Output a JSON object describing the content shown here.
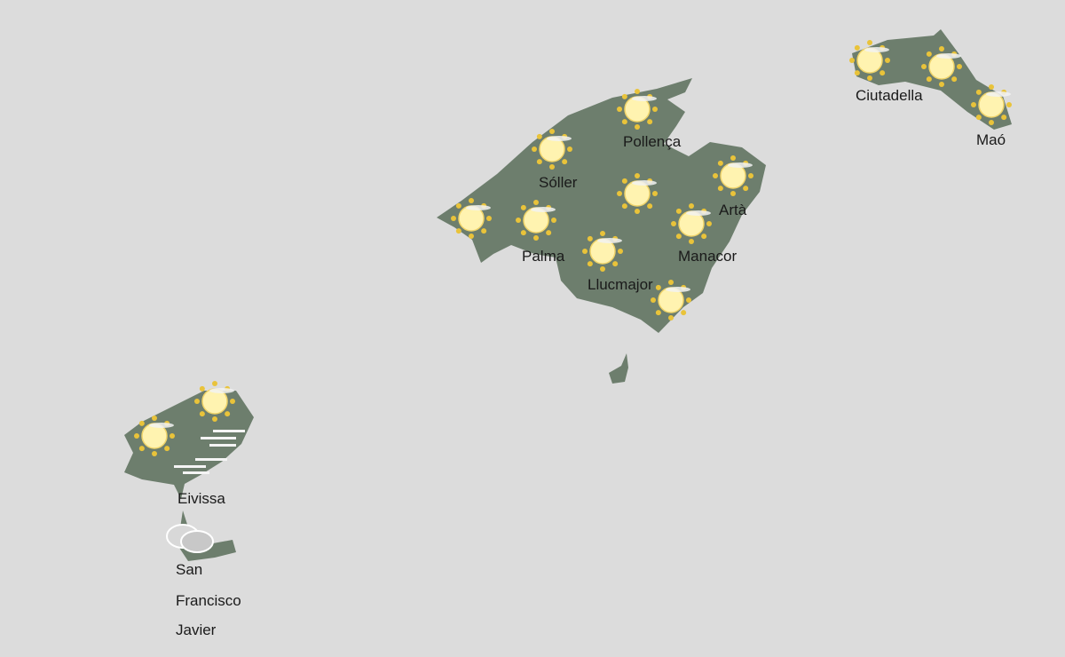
{
  "colors": {
    "background": "#dcdcdc",
    "land": "#6d7e6d",
    "sun": "#fff3b0",
    "sun_rays": "#e9c33a"
  },
  "locations": [
    {
      "name": "Pollença",
      "icon": "sun-icon"
    },
    {
      "name": "Sóller",
      "icon": "sun-icon"
    },
    {
      "name": "Artà",
      "icon": "sun-icon"
    },
    {
      "name": "Palma",
      "icon": "sun-icon"
    },
    {
      "name": "Manacor",
      "icon": "sun-icon"
    },
    {
      "name": "Llucmajor",
      "icon": "sun-icon"
    },
    {
      "name": "Ciutadella",
      "icon": "sun-icon"
    },
    {
      "name": "Maó",
      "icon": "sun-icon"
    },
    {
      "name": "Eivissa",
      "icon": "fog-icon"
    },
    {
      "name": "San",
      "icon": "cloud-icon"
    },
    {
      "name": "Francisco"
    },
    {
      "name": "Javier"
    }
  ]
}
